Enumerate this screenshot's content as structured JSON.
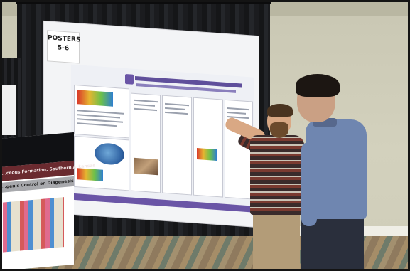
{
  "poster_board": {
    "label_line1": "POSTERS",
    "label_line2": "5-6"
  },
  "foreground_poster": {
    "header_line1": "...ceous Formation, Southern Arkansas",
    "header_line2": "...genic Control on Diagenesis"
  },
  "colors": {
    "poster_accent": "#6a55a6",
    "curtain": "#1b1c1f",
    "wall": "#d3d1bd",
    "plaid_shirt": "#7a3a30",
    "blue_shirt": "#6f86b0"
  }
}
